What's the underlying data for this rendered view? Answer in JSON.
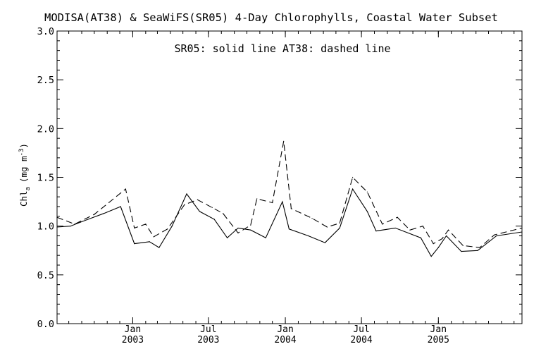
{
  "chart_data": {
    "type": "line",
    "title": "MODISA(AT38) & SeaWiFS(SR05) 4-Day Chlorophylls, Coastal Water Subset",
    "annotation": "SR05: solid line   AT38: dashed line",
    "ylabel": "Chl",
    "ylabel_subscript": "a",
    "ylabel_units": "(mg m",
    "ylabel_units_sup": "-3",
    "ylabel_units_close": ")",
    "xlabel": "",
    "ylim": [
      0.0,
      3.0
    ],
    "yticks": [
      "0.0",
      "0.5",
      "1.0",
      "1.5",
      "2.0",
      "2.5",
      "3.0"
    ],
    "xlim": [
      "2002-07-04",
      "2005-07-20"
    ],
    "xticks": [
      {
        "date": "2003-01-01",
        "month": "Jan",
        "year": "2003"
      },
      {
        "date": "2003-07-01",
        "month": "Jul",
        "year": "2003"
      },
      {
        "date": "2004-01-01",
        "month": "Jan",
        "year": "2004"
      },
      {
        "date": "2004-07-01",
        "month": "Jul",
        "year": "2004"
      },
      {
        "date": "2005-01-01",
        "month": "Jan",
        "year": "2005"
      }
    ],
    "grid": false,
    "legend": "none",
    "series": [
      {
        "name": "SR05",
        "style": "solid",
        "color": "#000000",
        "points": [
          [
            "2002-07-04",
            0.99
          ],
          [
            "2002-08-05",
            1.0
          ],
          [
            "2002-08-29",
            1.04
          ],
          [
            "2002-10-24",
            1.13
          ],
          [
            "2002-12-03",
            1.2
          ],
          [
            "2003-01-05",
            0.82
          ],
          [
            "2003-02-10",
            0.84
          ],
          [
            "2003-03-05",
            0.78
          ],
          [
            "2003-04-05",
            1.0
          ],
          [
            "2003-05-10",
            1.33
          ],
          [
            "2003-06-10",
            1.15
          ],
          [
            "2003-07-15",
            1.07
          ],
          [
            "2003-08-15",
            0.88
          ],
          [
            "2003-09-10",
            0.98
          ],
          [
            "2003-10-10",
            0.96
          ],
          [
            "2003-11-15",
            0.88
          ],
          [
            "2003-12-25",
            1.25
          ],
          [
            "2004-01-10",
            0.97
          ],
          [
            "2004-02-25",
            0.9
          ],
          [
            "2004-04-05",
            0.83
          ],
          [
            "2004-05-10",
            0.98
          ],
          [
            "2004-06-10",
            1.38
          ],
          [
            "2004-07-15",
            1.15
          ],
          [
            "2004-08-05",
            0.95
          ],
          [
            "2004-09-20",
            0.98
          ],
          [
            "2004-11-20",
            0.88
          ],
          [
            "2004-12-15",
            0.69
          ],
          [
            "2005-01-01",
            0.78
          ],
          [
            "2005-01-20",
            0.9
          ],
          [
            "2005-02-25",
            0.74
          ],
          [
            "2005-04-05",
            0.75
          ],
          [
            "2005-05-20",
            0.9
          ],
          [
            "2005-07-20",
            0.94
          ]
        ]
      },
      {
        "name": "AT38",
        "style": "dashed",
        "color": "#000000",
        "points": [
          [
            "2002-07-04",
            1.09
          ],
          [
            "2002-08-15",
            1.02
          ],
          [
            "2002-10-01",
            1.12
          ],
          [
            "2002-12-15",
            1.38
          ],
          [
            "2003-01-05",
            0.98
          ],
          [
            "2003-02-01",
            1.02
          ],
          [
            "2003-02-20",
            0.89
          ],
          [
            "2003-03-25",
            0.97
          ],
          [
            "2003-05-05",
            1.22
          ],
          [
            "2003-06-05",
            1.27
          ],
          [
            "2003-07-10",
            1.19
          ],
          [
            "2003-08-05",
            1.13
          ],
          [
            "2003-09-10",
            0.93
          ],
          [
            "2003-10-10",
            1.01
          ],
          [
            "2003-10-25",
            1.28
          ],
          [
            "2003-12-01",
            1.24
          ],
          [
            "2003-12-28",
            1.87
          ],
          [
            "2004-01-15",
            1.18
          ],
          [
            "2004-03-05",
            1.08
          ],
          [
            "2004-04-10",
            0.99
          ],
          [
            "2004-05-10",
            1.03
          ],
          [
            "2004-06-10",
            1.5
          ],
          [
            "2004-07-15",
            1.35
          ],
          [
            "2004-08-20",
            1.02
          ],
          [
            "2004-09-25",
            1.09
          ],
          [
            "2004-10-25",
            0.96
          ],
          [
            "2004-11-25",
            1.0
          ],
          [
            "2004-12-20",
            0.82
          ],
          [
            "2005-01-10",
            0.87
          ],
          [
            "2005-01-25",
            0.96
          ],
          [
            "2005-03-01",
            0.8
          ],
          [
            "2005-04-10",
            0.78
          ],
          [
            "2005-05-15",
            0.91
          ],
          [
            "2005-07-20",
            0.98
          ]
        ]
      }
    ]
  }
}
